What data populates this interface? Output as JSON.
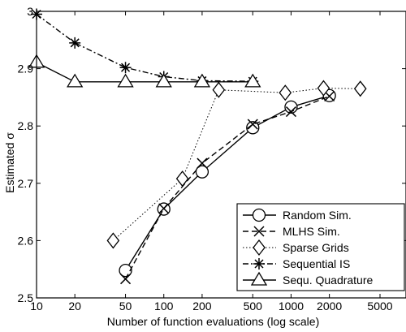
{
  "chart_data": {
    "type": "line",
    "xlabel": "Number of function evaluations (log scale)",
    "ylabel": "Estimated σ",
    "x_scale": "log",
    "xlim": [
      10,
      8000
    ],
    "ylim": [
      2.5,
      3.0
    ],
    "x_ticks": [
      10,
      20,
      50,
      100,
      200,
      500,
      1000,
      2000,
      5000
    ],
    "x_tick_labels": [
      "10",
      "20",
      "50",
      "100",
      "200",
      "500",
      "1000",
      "2000",
      "5000"
    ],
    "y_ticks": [
      2.5,
      2.6,
      2.7,
      2.8,
      2.9,
      3.0
    ],
    "y_tick_labels": [
      "2.5",
      "2.6",
      "2.7",
      "2.8",
      "2.9",
      "3"
    ],
    "grid": false,
    "legend_position": "bottom-right",
    "series": [
      {
        "name": "Random Sim.",
        "marker": "circle",
        "line_style": "solid",
        "x": [
          50,
          100,
          200,
          500,
          1000,
          2000
        ],
        "y": [
          2.548,
          2.655,
          2.72,
          2.797,
          2.833,
          2.853
        ]
      },
      {
        "name": "MLHS Sim.",
        "marker": "x",
        "line_style": "dashed",
        "x": [
          50,
          100,
          200,
          500,
          1000,
          2000
        ],
        "y": [
          2.533,
          2.656,
          2.735,
          2.803,
          2.825,
          2.852
        ]
      },
      {
        "name": "Sparse Grids",
        "marker": "diamond",
        "line_style": "dotted",
        "x": [
          40,
          140,
          270,
          900,
          1800,
          3500
        ],
        "y": [
          2.6,
          2.708,
          2.863,
          2.858,
          2.866,
          2.865
        ]
      },
      {
        "name": "Sequential IS",
        "marker": "asterisk",
        "line_style": "dashdot",
        "x": [
          10,
          20,
          50,
          100,
          200,
          500
        ],
        "y": [
          2.995,
          2.945,
          2.902,
          2.886,
          2.879,
          2.878
        ]
      },
      {
        "name": "Sequ. Quadrature",
        "marker": "triangle",
        "line_style": "solid",
        "x": [
          10,
          20,
          50,
          100,
          200,
          500
        ],
        "y": [
          2.911,
          2.877,
          2.877,
          2.877,
          2.877,
          2.877
        ]
      }
    ]
  }
}
